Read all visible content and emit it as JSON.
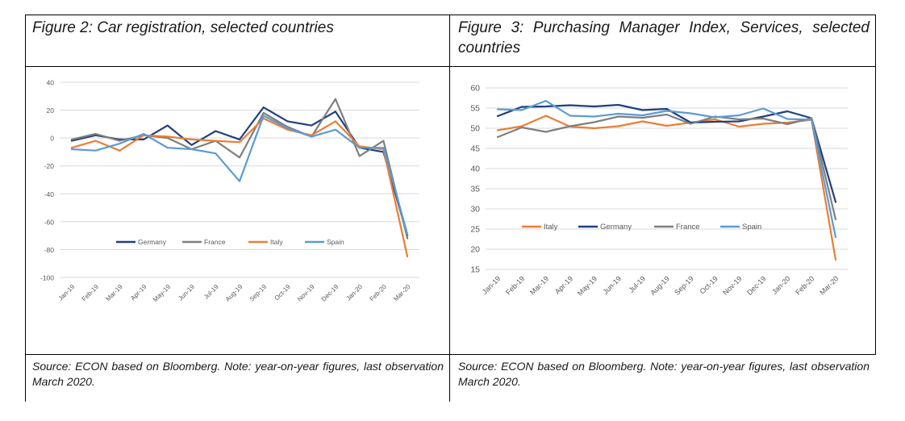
{
  "panels": [
    {
      "title": "Figure 2: Car registration, selected countries",
      "source": "Source: ECON based on Bloomberg. Note: year-on-year figures, last observation March 2020."
    },
    {
      "title": "Figure  3:  Purchasing  Manager  Index,  Services, selected countries",
      "source": "Source: ECON based on Bloomberg. Note: year-on-year figures, last observation March 2020."
    }
  ],
  "chart_data": [
    {
      "type": "line",
      "title": "Figure 2: Car registration, selected countries",
      "categories": [
        "Jan-19",
        "Feb-19",
        "Mar-19",
        "Apr-19",
        "May-19",
        "Jun-19",
        "Jul-19",
        "Aug-19",
        "Sep-19",
        "Oct-19",
        "Nov-19",
        "Dec-19",
        "Jan-20",
        "Feb-20",
        "Mar-20"
      ],
      "ylim": [
        -100,
        40
      ],
      "yticks": [
        40,
        20,
        0,
        -20,
        -40,
        -60,
        -80,
        -100
      ],
      "legend_position": "inside-center",
      "grid": true,
      "series": [
        {
          "name": "Germany",
          "color": "#1f3f7f",
          "values": [
            -2,
            2,
            -1,
            -1,
            9,
            -5,
            5,
            -1,
            22,
            12,
            9,
            19,
            -7,
            -10,
            -70
          ]
        },
        {
          "name": "France",
          "color": "#7f7f7f",
          "values": [
            -1,
            3,
            -2,
            2,
            0,
            -8,
            -2,
            -14,
            18,
            8,
            1,
            28,
            -13,
            -2,
            -72
          ]
        },
        {
          "name": "Italy",
          "color": "#ed7d31",
          "values": [
            -7,
            -2,
            -9,
            2,
            1,
            -1,
            -2,
            -3,
            14,
            6,
            2,
            12,
            -6,
            -8,
            -85
          ]
        },
        {
          "name": "Spain",
          "color": "#5b9bd5",
          "values": [
            -8,
            -9,
            -4,
            3,
            -7,
            -8,
            -11,
            -31,
            16,
            7,
            1,
            6,
            -7,
            -7,
            -69
          ]
        }
      ]
    },
    {
      "type": "line",
      "title": "Figure 3: Purchasing Manager Index, Services, selected countries",
      "categories": [
        "Jan-19",
        "Feb-19",
        "Mar-19",
        "Apr-19",
        "May-19",
        "Jun-19",
        "Jul-19",
        "Aug-19",
        "Sep-19",
        "Oct-19",
        "Nov-19",
        "Dec-19",
        "Jan-20",
        "Feb-20",
        "Mar-20"
      ],
      "ylim": [
        15,
        60
      ],
      "yticks": [
        60,
        55,
        50,
        45,
        40,
        35,
        30,
        25,
        20,
        15
      ],
      "legend_position": "inside-left",
      "grid": true,
      "series": [
        {
          "name": "Italy",
          "color": "#ed7d31",
          "values": [
            49.5,
            50.5,
            53.1,
            50.4,
            50.0,
            50.5,
            51.7,
            50.6,
            51.4,
            52.2,
            50.4,
            51.1,
            51.4,
            52.1,
            17.4
          ]
        },
        {
          "name": "Germany",
          "color": "#1f3f7f",
          "values": [
            53.0,
            55.3,
            55.4,
            55.7,
            55.4,
            55.8,
            54.5,
            54.8,
            51.4,
            51.6,
            51.7,
            52.9,
            54.2,
            52.5,
            31.7
          ]
        },
        {
          "name": "France",
          "color": "#7f7f7f",
          "values": [
            47.8,
            50.2,
            49.1,
            50.5,
            51.5,
            52.9,
            52.6,
            53.4,
            51.1,
            52.9,
            52.2,
            52.4,
            51.0,
            52.5,
            27.4
          ]
        },
        {
          "name": "Spain",
          "color": "#5b9bd5",
          "values": [
            54.7,
            54.5,
            56.8,
            53.1,
            52.9,
            53.6,
            53.2,
            54.3,
            53.7,
            52.7,
            53.2,
            54.9,
            52.3,
            52.1,
            23.0
          ]
        }
      ]
    }
  ]
}
